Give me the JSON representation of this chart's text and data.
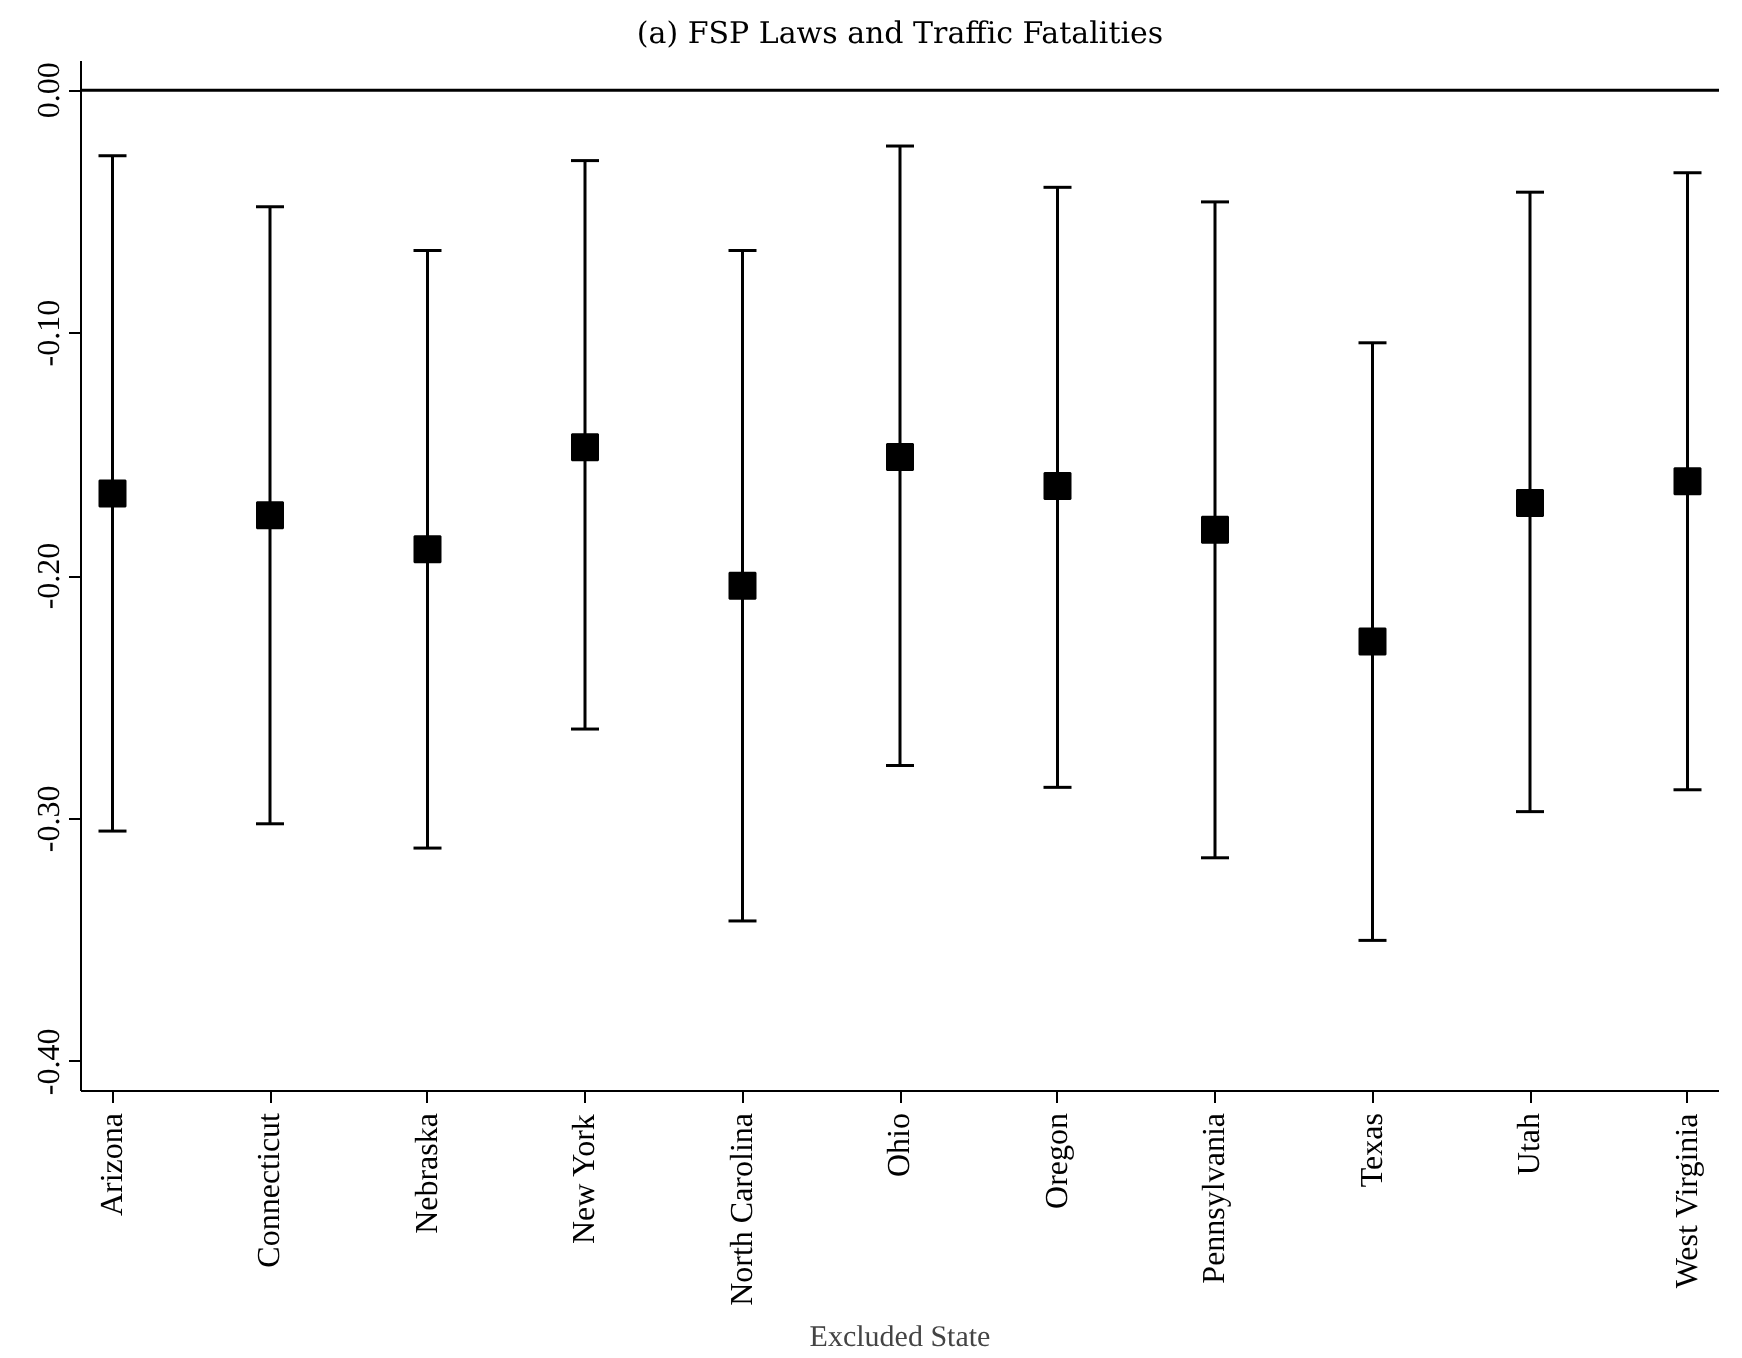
{
  "chart_data": {
    "type": "scatter",
    "title": "(a) FSP Laws and Traffic Fatalities",
    "xlabel": "Excluded State",
    "categories": [
      "Arizona",
      "Connecticut",
      "Nebraska",
      "New York",
      "North Carolina",
      "Ohio",
      "Oregon",
      "Pennsylvania",
      "Texas",
      "Utah",
      "West Virginia"
    ],
    "values": [
      -0.166,
      -0.175,
      -0.189,
      -0.147,
      -0.204,
      -0.151,
      -0.163,
      -0.181,
      -0.227,
      -0.17,
      -0.161
    ],
    "errors": [
      [
        -0.305,
        -0.027
      ],
      [
        -0.302,
        -0.048
      ],
      [
        -0.312,
        -0.066
      ],
      [
        -0.263,
        -0.029
      ],
      [
        -0.342,
        -0.066
      ],
      [
        -0.278,
        -0.023
      ],
      [
        -0.287,
        -0.04
      ],
      [
        -0.316,
        -0.046
      ],
      [
        -0.35,
        -0.104
      ],
      [
        -0.297,
        -0.042
      ],
      [
        -0.288,
        -0.034
      ]
    ],
    "color": "#000000",
    "marker": "square",
    "grid": false,
    "ylim": [
      -0.412,
      0.012
    ],
    "yticks": [
      {
        "value": 0,
        "label": "0.00"
      },
      {
        "value": -0.1,
        "label": "-0.10"
      },
      {
        "value": -0.2,
        "label": "-0.20"
      },
      {
        "value": -0.3,
        "label": "-0.30"
      },
      {
        "value": -0.4,
        "label": "-0.40"
      }
    ],
    "ref_lines": [
      {
        "axis": "y",
        "value": 0,
        "color": "#000000"
      }
    ]
  }
}
